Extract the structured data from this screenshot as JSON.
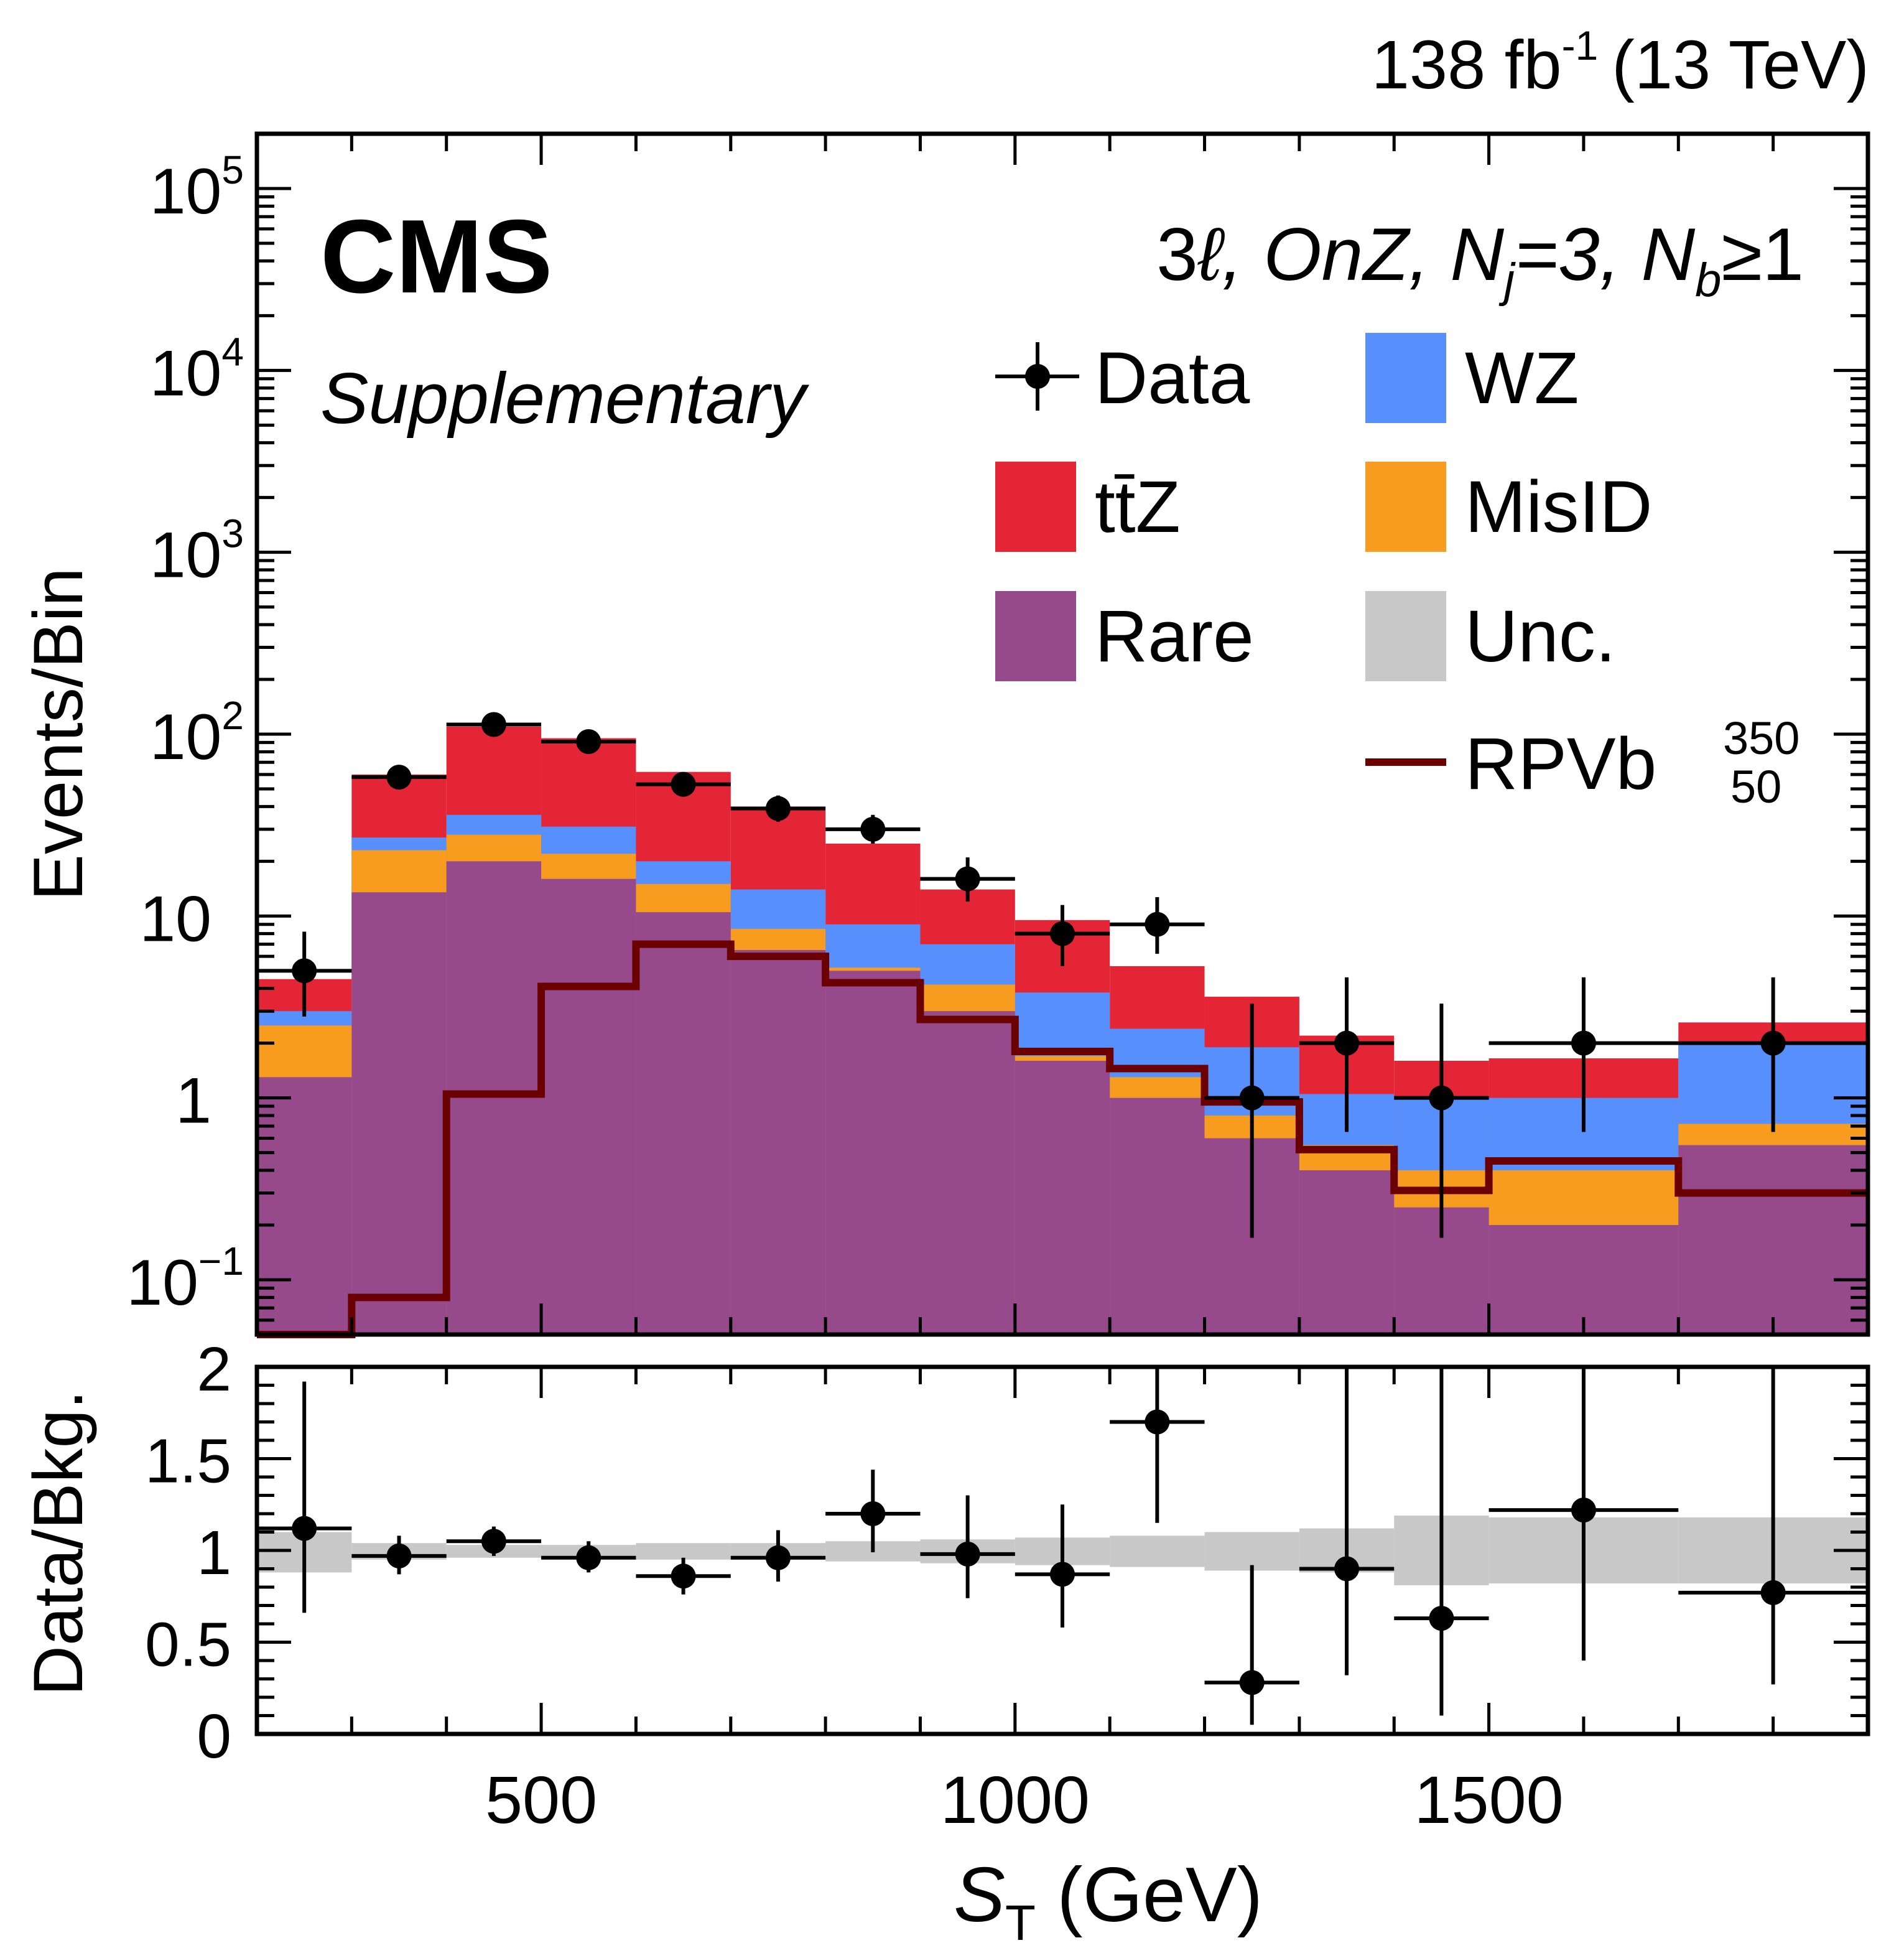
{
  "chart_data": [
    {
      "type": "histogram-stack",
      "panel": "main",
      "lumi_label": "138 fb",
      "lumi_exp": "-1",
      "energy_label": "(13 TeV)",
      "experiment": "CMS",
      "status": "Supplementary",
      "selection_parts": [
        "3",
        "ℓ, OnZ, N",
        "j",
        "=3, N",
        "b",
        "≥1"
      ],
      "ylabel": "Events/Bin",
      "y_scale": "log",
      "ylim": [
        0.05,
        200000
      ],
      "y_tick_labels": [
        {
          "value": 0.1,
          "base": "10",
          "exp": "−1"
        },
        {
          "value": 1,
          "base": "1",
          "exp": ""
        },
        {
          "value": 10,
          "base": "10",
          "exp": ""
        },
        {
          "value": 100,
          "base": "10",
          "exp": "2"
        },
        {
          "value": 1000,
          "base": "10",
          "exp": "3"
        },
        {
          "value": 10000,
          "base": "10",
          "exp": "4"
        },
        {
          "value": 100000,
          "base": "10",
          "exp": "5"
        }
      ],
      "xlim": [
        200,
        1900
      ],
      "bin_edges": [
        200,
        300,
        400,
        500,
        600,
        700,
        800,
        900,
        1000,
        1100,
        1200,
        1300,
        1400,
        1500,
        1700,
        1900
      ],
      "legend": [
        {
          "key": "data",
          "label": "Data",
          "kind": "marker"
        },
        {
          "key": "wz",
          "label": "WZ",
          "kind": "box",
          "color": "#5790fc"
        },
        {
          "key": "ttz",
          "label": "tt̄Z",
          "kind": "box",
          "color": "#e42536"
        },
        {
          "key": "misid",
          "label": "MisID",
          "kind": "box",
          "color": "#f89c20"
        },
        {
          "key": "rare",
          "label": "Rare",
          "kind": "box",
          "color": "#964a8b"
        },
        {
          "key": "unc",
          "label": "Unc.",
          "kind": "box",
          "color": "#c8c8c8"
        },
        {
          "key": "signal",
          "label": "RPVb",
          "sup": "350",
          "sub": "50",
          "kind": "line",
          "color": "#6b0000"
        }
      ],
      "stack_cumulative": [
        {
          "name": "Rare",
          "color": "#964a8b",
          "values": [
            1.3,
            13.5,
            20,
            16,
            10.5,
            6.5,
            5.0,
            3.0,
            1.6,
            1.0,
            0.6,
            0.4,
            0.25,
            0.2,
            0.55
          ]
        },
        {
          "name": "MisID",
          "color": "#f89c20",
          "values": [
            2.5,
            23,
            28,
            22,
            15,
            8.5,
            5.2,
            4.2,
            1.7,
            1.3,
            0.8,
            0.55,
            0.4,
            0.4,
            0.72
          ]
        },
        {
          "name": "WZ",
          "color": "#5790fc",
          "values": [
            3.0,
            27,
            36,
            31,
            20,
            14,
            9.0,
            7.0,
            3.8,
            2.4,
            1.9,
            1.05,
            1.0,
            1.0,
            2.0
          ]
        },
        {
          "name": "tt̄Z",
          "color": "#e42536",
          "values": [
            4.5,
            60,
            110,
            95,
            62,
            40,
            25,
            14,
            9.5,
            5.3,
            3.6,
            2.2,
            1.6,
            1.65,
            2.6
          ]
        }
      ],
      "data_points": [
        {
          "x": 250,
          "y": 5,
          "ylo": 2.8,
          "yhi": 8.2
        },
        {
          "x": 350,
          "y": 58,
          "ylo": 51,
          "yhi": 66
        },
        {
          "x": 450,
          "y": 113,
          "ylo": 103,
          "yhi": 124
        },
        {
          "x": 550,
          "y": 91,
          "ylo": 82,
          "yhi": 101
        },
        {
          "x": 650,
          "y": 53,
          "ylo": 46,
          "yhi": 61
        },
        {
          "x": 750,
          "y": 39,
          "ylo": 33,
          "yhi": 46
        },
        {
          "x": 850,
          "y": 30,
          "ylo": 25,
          "yhi": 36
        },
        {
          "x": 950,
          "y": 16,
          "ylo": 12,
          "yhi": 21
        },
        {
          "x": 1050,
          "y": 8,
          "ylo": 5.3,
          "yhi": 11.5
        },
        {
          "x": 1150,
          "y": 9,
          "ylo": 6.2,
          "yhi": 12.7
        },
        {
          "x": 1250,
          "y": 1,
          "ylo": 0.17,
          "yhi": 3.3
        },
        {
          "x": 1350,
          "y": 2,
          "ylo": 0.65,
          "yhi": 4.6
        },
        {
          "x": 1450,
          "y": 1,
          "ylo": 0.17,
          "yhi": 3.3
        },
        {
          "x": 1600,
          "y": 2,
          "ylo": 0.65,
          "yhi": 4.6
        },
        {
          "x": 1800,
          "y": 2,
          "ylo": 0.65,
          "yhi": 4.6
        }
      ],
      "signal_values": [
        0.02,
        0.08,
        1.05,
        4.1,
        7.0,
        6.0,
        4.3,
        2.7,
        1.8,
        1.45,
        0.95,
        0.52,
        0.31,
        0.45,
        0.3
      ]
    },
    {
      "type": "ratio",
      "panel": "ratio",
      "ylabel": "Data/Bkg.",
      "xlabel_main": "S",
      "xlabel_sub": "T",
      "xlabel_unit": " (GeV)",
      "ylim": [
        0,
        2
      ],
      "y_tick_labels": [
        "0",
        "0.5",
        "1",
        "1.5",
        "2"
      ],
      "x_tick_labels": [
        {
          "value": 500,
          "label": "500"
        },
        {
          "value": 1000,
          "label": "1000"
        },
        {
          "value": 1500,
          "label": "1500"
        }
      ],
      "unc_band": [
        {
          "lo": 0.88,
          "hi": 1.1
        },
        {
          "lo": 0.95,
          "hi": 1.04
        },
        {
          "lo": 0.96,
          "hi": 1.03
        },
        {
          "lo": 0.96,
          "hi": 1.03
        },
        {
          "lo": 0.95,
          "hi": 1.04
        },
        {
          "lo": 0.95,
          "hi": 1.04
        },
        {
          "lo": 0.94,
          "hi": 1.05
        },
        {
          "lo": 0.93,
          "hi": 1.06
        },
        {
          "lo": 0.92,
          "hi": 1.07
        },
        {
          "lo": 0.91,
          "hi": 1.08
        },
        {
          "lo": 0.89,
          "hi": 1.1
        },
        {
          "lo": 0.88,
          "hi": 1.12
        },
        {
          "lo": 0.81,
          "hi": 1.19
        },
        {
          "lo": 0.82,
          "hi": 1.18
        },
        {
          "lo": 0.82,
          "hi": 1.18
        }
      ],
      "points": [
        {
          "x": 250,
          "y": 1.12,
          "ylo": 0.66,
          "yhi": 1.92
        },
        {
          "x": 350,
          "y": 0.97,
          "ylo": 0.87,
          "yhi": 1.08
        },
        {
          "x": 450,
          "y": 1.05,
          "ylo": 0.97,
          "yhi": 1.13
        },
        {
          "x": 550,
          "y": 0.96,
          "ylo": 0.88,
          "yhi": 1.05
        },
        {
          "x": 650,
          "y": 0.86,
          "ylo": 0.76,
          "yhi": 0.96
        },
        {
          "x": 750,
          "y": 0.96,
          "ylo": 0.83,
          "yhi": 1.11
        },
        {
          "x": 850,
          "y": 1.2,
          "ylo": 0.99,
          "yhi": 1.44
        },
        {
          "x": 950,
          "y": 0.98,
          "ylo": 0.74,
          "yhi": 1.3
        },
        {
          "x": 1050,
          "y": 0.87,
          "ylo": 0.58,
          "yhi": 1.25
        },
        {
          "x": 1150,
          "y": 1.7,
          "ylo": 1.15,
          "yhi": 2.0
        },
        {
          "x": 1250,
          "y": 0.28,
          "ylo": 0.05,
          "yhi": 0.92
        },
        {
          "x": 1350,
          "y": 0.9,
          "ylo": 0.32,
          "yhi": 2.0
        },
        {
          "x": 1450,
          "y": 0.63,
          "ylo": 0.1,
          "yhi": 2.0
        },
        {
          "x": 1600,
          "y": 1.22,
          "ylo": 0.4,
          "yhi": 2.0
        },
        {
          "x": 1800,
          "y": 0.77,
          "ylo": 0.27,
          "yhi": 2.0
        }
      ]
    }
  ]
}
